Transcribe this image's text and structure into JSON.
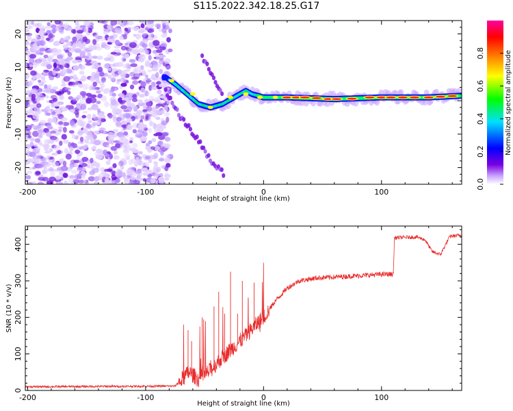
{
  "title": "S115.2022.342.18.25.G17",
  "chart_data": [
    {
      "type": "heatmap",
      "xlabel": "Height of straight line (km)",
      "ylabel": "Frequency (Hz)",
      "xlim": [
        -202,
        168
      ],
      "ylim": [
        -25,
        24
      ],
      "xticks": [
        -200,
        -100,
        0,
        100
      ],
      "yticks": [
        -20,
        -10,
        0,
        10,
        20
      ],
      "colorbar": {
        "label": "Normalized spectral amplitude",
        "range": [
          0,
          1
        ],
        "ticks": [
          "0.0",
          "0.2",
          "0.4",
          "0.6",
          "0.8"
        ],
        "colors": [
          "#ffffff",
          "#7a00e0",
          "#0000ff",
          "#00e0ff",
          "#00ff00",
          "#ffff00",
          "#ff8000",
          "#ff0000",
          "#ff00a0"
        ]
      },
      "features": {
        "noise_region_x": [
          -202,
          -83
        ],
        "main_trace": [
          {
            "x": -83,
            "y": 7
          },
          {
            "x": -75,
            "y": 5
          },
          {
            "x": -65,
            "y": 2
          },
          {
            "x": -55,
            "y": -1
          },
          {
            "x": -45,
            "y": -2
          },
          {
            "x": -35,
            "y": -1
          },
          {
            "x": -25,
            "y": 1
          },
          {
            "x": -15,
            "y": 3
          },
          {
            "x": -10,
            "y": 2
          },
          {
            "x": 0,
            "y": 1
          },
          {
            "x": 20,
            "y": 1
          },
          {
            "x": 60,
            "y": 0.5
          },
          {
            "x": 100,
            "y": 1
          },
          {
            "x": 140,
            "y": 1
          },
          {
            "x": 168,
            "y": 1.5
          }
        ],
        "lower_branch": [
          {
            "x": -83,
            "y": 3
          },
          {
            "x": -70,
            "y": -5
          },
          {
            "x": -55,
            "y": -12
          },
          {
            "x": -45,
            "y": -18
          },
          {
            "x": -33,
            "y": -22
          }
        ],
        "upper_branch": [
          {
            "x": -52,
            "y": 13
          },
          {
            "x": -42,
            "y": 7
          },
          {
            "x": -35,
            "y": 2
          }
        ]
      }
    },
    {
      "type": "line",
      "xlabel": "Height of straight line (km)",
      "ylabel": "SNR (10 * v/v)",
      "xlim": [
        -202,
        168
      ],
      "ylim": [
        0,
        450
      ],
      "xticks": [
        -200,
        -100,
        0,
        100
      ],
      "yticks": [
        0,
        100,
        200,
        300,
        400
      ],
      "color": "#e82a2a",
      "envelope": [
        {
          "x": -202,
          "y": 10
        },
        {
          "x": -75,
          "y": 12
        },
        {
          "x": -68,
          "y": 35
        },
        {
          "x": -63,
          "y": 50
        },
        {
          "x": -55,
          "y": 30
        },
        {
          "x": -45,
          "y": 55
        },
        {
          "x": -35,
          "y": 90
        },
        {
          "x": -25,
          "y": 120
        },
        {
          "x": -15,
          "y": 150
        },
        {
          "x": -5,
          "y": 185
        },
        {
          "x": 0,
          "y": 200
        },
        {
          "x": 10,
          "y": 245
        },
        {
          "x": 20,
          "y": 280
        },
        {
          "x": 30,
          "y": 300
        },
        {
          "x": 45,
          "y": 308
        },
        {
          "x": 70,
          "y": 312
        },
        {
          "x": 100,
          "y": 318
        },
        {
          "x": 110,
          "y": 318
        },
        {
          "x": 111,
          "y": 418
        },
        {
          "x": 130,
          "y": 420
        },
        {
          "x": 137,
          "y": 412
        },
        {
          "x": 143,
          "y": 380
        },
        {
          "x": 150,
          "y": 372
        },
        {
          "x": 158,
          "y": 422
        },
        {
          "x": 168,
          "y": 425
        }
      ],
      "spikes": [
        {
          "x": -64,
          "y": 165
        },
        {
          "x": -61,
          "y": 135
        },
        {
          "x": -52,
          "y": 200
        },
        {
          "x": -42,
          "y": 230
        },
        {
          "x": -38,
          "y": 270
        },
        {
          "x": -33,
          "y": 210
        },
        {
          "x": -28,
          "y": 325
        },
        {
          "x": -22,
          "y": 210
        },
        {
          "x": -18,
          "y": 300
        },
        {
          "x": -13,
          "y": 250
        },
        {
          "x": -8,
          "y": 295
        },
        {
          "x": -3,
          "y": 160
        }
      ]
    }
  ]
}
